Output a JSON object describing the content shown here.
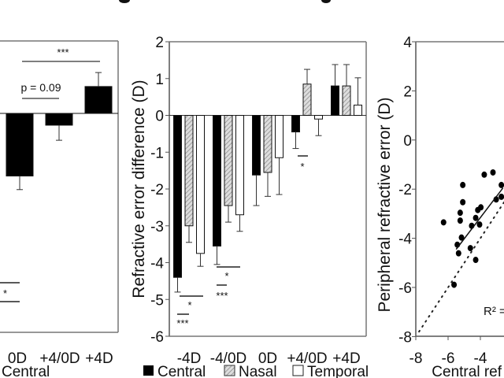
{
  "chart_data": [
    {
      "type": "bar",
      "panel": "left",
      "categories": [
        "0D",
        "+4/0D",
        "+4D"
      ],
      "series": [
        {
          "name": "Central",
          "values": [
            -1.7,
            -0.32,
            0.73
          ],
          "errors": [
            0.37,
            0.41,
            0.38
          ]
        }
      ],
      "annotations": {
        "sig_top": "***",
        "p_value": "p = 0.09",
        "sig_bottom": "*"
      },
      "legend_label": "Central",
      "ylim": [
        -6,
        2
      ]
    },
    {
      "type": "bar",
      "panel": "middle",
      "categories": [
        "-4D",
        "-4/0D",
        "0D",
        "+4/0D",
        "+4D"
      ],
      "series": [
        {
          "name": "Central",
          "values": [
            -4.4,
            -3.55,
            -1.62,
            -0.45,
            0.8
          ],
          "errors": [
            0.4,
            0.5,
            0.83,
            0.45,
            0.58
          ],
          "color": "#000000"
        },
        {
          "name": "Nasal",
          "values": [
            -3.0,
            -2.45,
            -1.55,
            0.85,
            0.8
          ],
          "errors": [
            0.45,
            0.45,
            0.65,
            0.4,
            0.58
          ],
          "color": "#bbbbbb"
        },
        {
          "name": "Temporal",
          "values": [
            -3.75,
            -2.7,
            -1.15,
            -0.1,
            0.28
          ],
          "errors": [
            0.35,
            0.45,
            1.0,
            0.45,
            0.74
          ],
          "color": "#ffffff"
        }
      ],
      "ylabel": "Refractive error difference (D)",
      "yticks": [
        "2",
        "1",
        "0",
        "-1",
        "-2",
        "-3",
        "-4",
        "-5",
        "-6"
      ],
      "ylim": [
        -6,
        2
      ],
      "annotations": {
        "a1": "*",
        "a2": "***",
        "a3": "*",
        "a4": "***",
        "a5": "*"
      },
      "legend": [
        "Central",
        "Nasal",
        "Temporal"
      ]
    },
    {
      "type": "scatter",
      "panel": "right",
      "ylabel": "Peripheral refractive error (D)",
      "xlabel": "Central ref",
      "yticks": [
        "4",
        "2",
        "0",
        "-2",
        "-4",
        "-6",
        "-8"
      ],
      "xticks": [
        "-8",
        "-6",
        "-4"
      ],
      "xlim": [
        -8,
        -2.5
      ],
      "ylim": [
        -8,
        4
      ],
      "points": [
        [
          -6.28,
          -3.35
        ],
        [
          -5.09,
          -1.83
        ],
        [
          -5.09,
          -2.53
        ],
        [
          -5.25,
          -2.96
        ],
        [
          -5.25,
          -3.28
        ],
        [
          -5.17,
          -3.97
        ],
        [
          -5.43,
          -4.26
        ],
        [
          -5.35,
          -4.61
        ],
        [
          -4.29,
          -3.17
        ],
        [
          -4.54,
          -3.49
        ],
        [
          -4.62,
          -4.4
        ],
        [
          -4.29,
          -4.88
        ],
        [
          -4.16,
          -2.85
        ],
        [
          -3.97,
          -2.74
        ],
        [
          -4.05,
          -3.44
        ],
        [
          -3.76,
          -1.41
        ],
        [
          -3.22,
          -1.32
        ],
        [
          -2.7,
          -1.83
        ],
        [
          -3.02,
          -2.42
        ],
        [
          -2.7,
          -2.31
        ],
        [
          -5.63,
          -5.89
        ]
      ],
      "fit_line": [
        [
          -5.5,
          -4.45
        ],
        [
          -2.6,
          -1.95
        ]
      ],
      "identity_line": true,
      "r2_label": "R² ="
    }
  ]
}
